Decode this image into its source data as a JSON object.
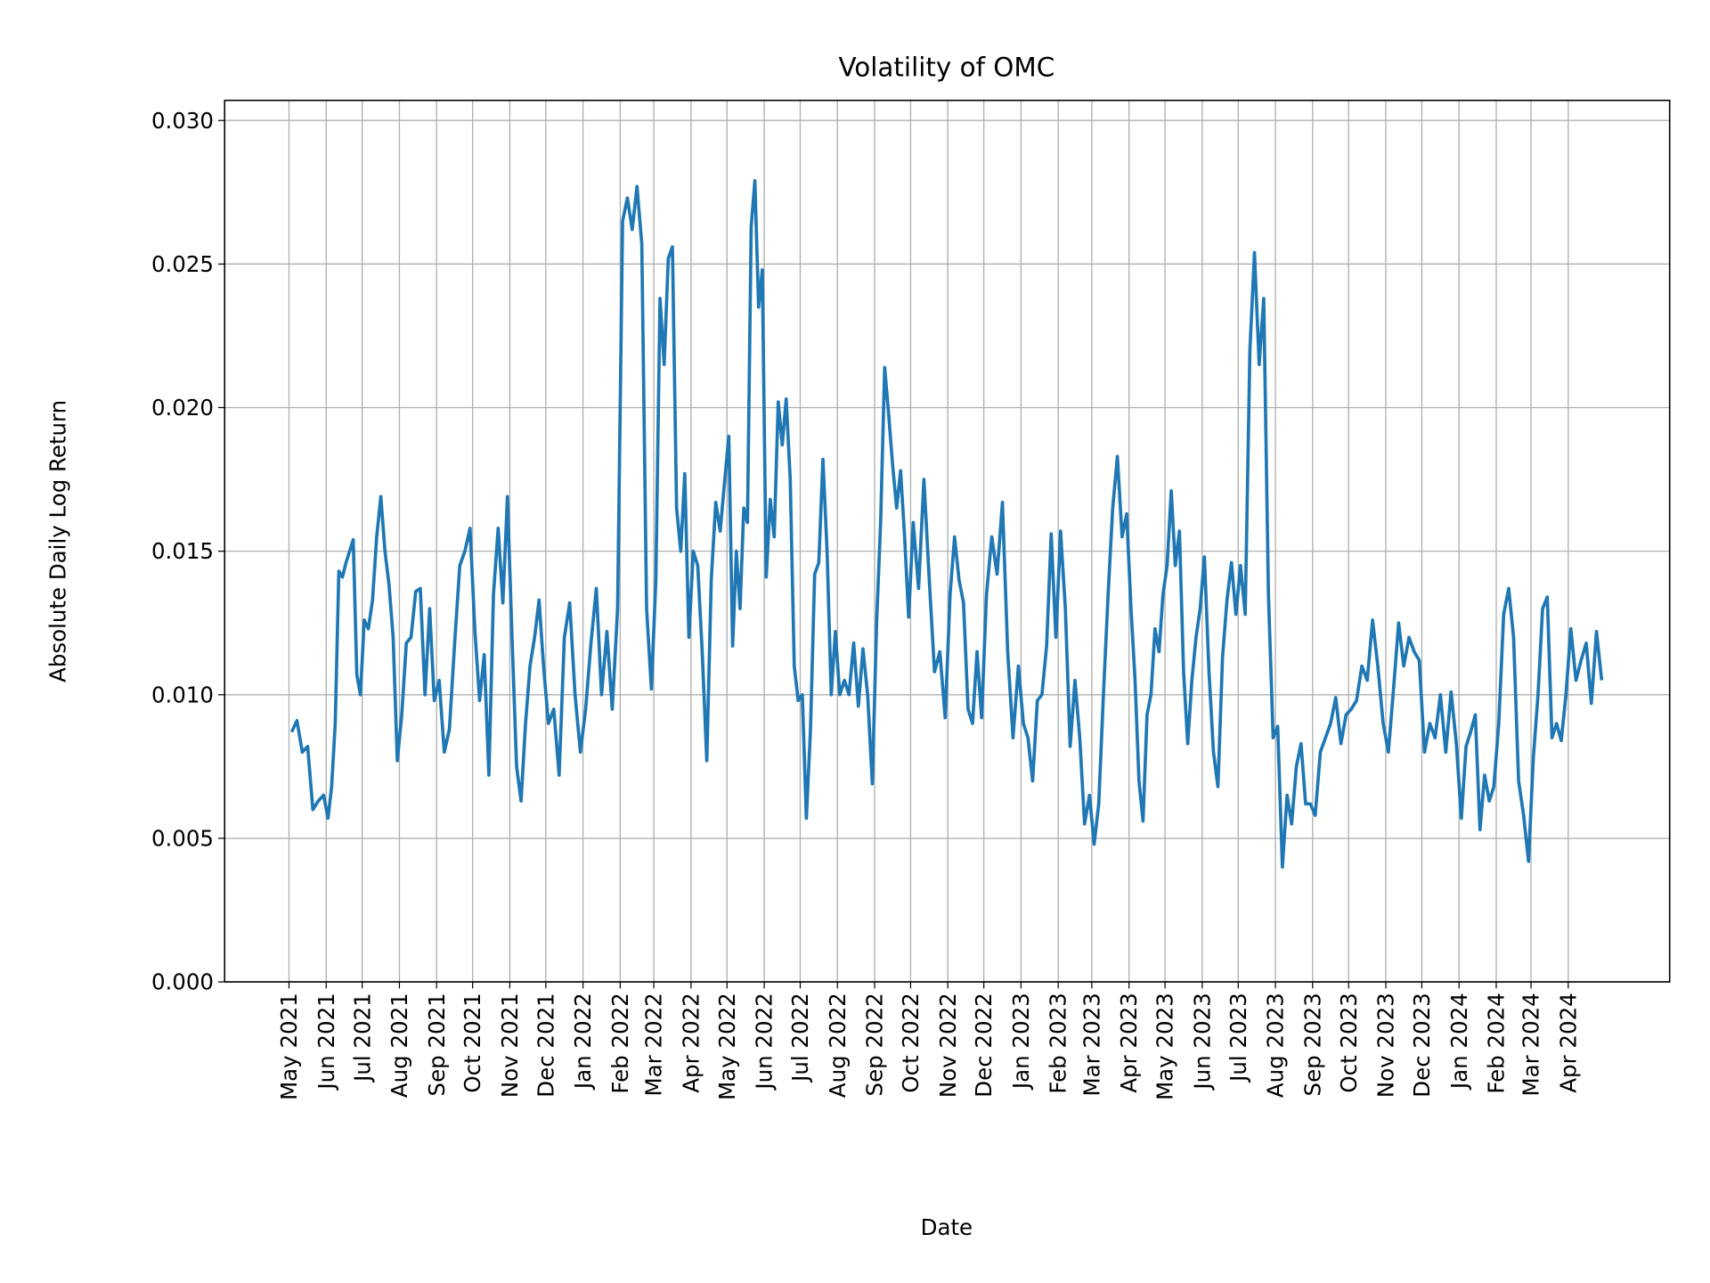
{
  "chart_data": {
    "type": "line",
    "title": "Volatility of OMC",
    "xlabel": "Date",
    "ylabel": "Absolute Daily Log Return",
    "ylim": [
      0,
      0.0307
    ],
    "yticks": [
      "0.000",
      "0.005",
      "0.010",
      "0.015",
      "0.020",
      "0.025",
      "0.030"
    ],
    "xticks": [
      "May 2021",
      "Jun 2021",
      "Jul 2021",
      "Aug 2021",
      "Sep 2021",
      "Oct 2021",
      "Nov 2021",
      "Dec 2021",
      "Jan 2022",
      "Feb 2022",
      "Mar 2022",
      "Apr 2022",
      "May 2022",
      "Jun 2022",
      "Jul 2022",
      "Aug 2022",
      "Sep 2022",
      "Oct 2022",
      "Nov 2022",
      "Dec 2022",
      "Jan 2023",
      "Feb 2023",
      "Mar 2023",
      "Apr 2023",
      "May 2023",
      "Jun 2023",
      "Jul 2023",
      "Aug 2023",
      "Sep 2023",
      "Oct 2023",
      "Nov 2023",
      "Dec 2023",
      "Jan 2024",
      "Feb 2024",
      "Mar 2024",
      "Apr 2024"
    ],
    "grid": true,
    "line_color": "#1f77b4",
    "series": [
      {
        "by_month": [
          {
            "month": "2021-05",
            "values": [
              0.0087,
              0.0091,
              0.008,
              0.0082,
              0.006,
              0.0063,
              0.0065
            ]
          },
          {
            "month": "2021-06",
            "values": [
              0.0057,
              0.0068,
              0.009,
              0.0143,
              0.0141,
              0.0146,
              0.015,
              0.0154,
              0.0107,
              0.01
            ]
          },
          {
            "month": "2021-07",
            "values": [
              0.0126,
              0.0123,
              0.0133,
              0.0155,
              0.0169,
              0.015,
              0.0138,
              0.012,
              0.0077
            ]
          },
          {
            "month": "2021-08",
            "values": [
              0.0093,
              0.0118,
              0.012,
              0.0136,
              0.0137,
              0.01,
              0.013,
              0.0098
            ]
          },
          {
            "month": "2021-09",
            "values": [
              0.0105,
              0.008,
              0.0088,
              0.0118,
              0.0145,
              0.015,
              0.0158
            ]
          },
          {
            "month": "2021-10",
            "values": [
              0.0122,
              0.0098,
              0.0114,
              0.0072,
              0.0135,
              0.0158,
              0.0132,
              0.0169
            ]
          },
          {
            "month": "2021-11",
            "values": [
              0.012,
              0.0075,
              0.0063,
              0.009,
              0.011,
              0.012,
              0.0133,
              0.011
            ]
          },
          {
            "month": "2021-12",
            "values": [
              0.009,
              0.0095,
              0.0072,
              0.012,
              0.0132,
              0.01,
              0.008
            ]
          },
          {
            "month": "2022-01",
            "values": [
              0.0095,
              0.0118,
              0.0137,
              0.01,
              0.0122,
              0.0095,
              0.013
            ]
          },
          {
            "month": "2022-02",
            "values": [
              0.0265,
              0.0273,
              0.0262,
              0.0277,
              0.0257,
              0.013,
              0.0102
            ]
          },
          {
            "month": "2022-03",
            "values": [
              0.014,
              0.0238,
              0.0215,
              0.0252,
              0.0256,
              0.0165,
              0.015,
              0.0177,
              0.012
            ]
          },
          {
            "month": "2022-04",
            "values": [
              0.015,
              0.0145,
              0.0115,
              0.0077,
              0.014,
              0.0167,
              0.0157,
              0.0175
            ]
          },
          {
            "month": "2022-05",
            "values": [
              0.019,
              0.0117,
              0.015,
              0.013,
              0.0165,
              0.016,
              0.0263,
              0.0279,
              0.0235,
              0.0248
            ]
          },
          {
            "month": "2022-06",
            "values": [
              0.0141,
              0.0168,
              0.0155,
              0.0202,
              0.0187,
              0.0203,
              0.0175,
              0.011,
              0.0098
            ]
          },
          {
            "month": "2022-07",
            "values": [
              0.01,
              0.0057,
              0.0088,
              0.0142,
              0.0146,
              0.0182,
              0.015,
              0.01,
              0.0122
            ]
          },
          {
            "month": "2022-08",
            "values": [
              0.01,
              0.0105,
              0.01,
              0.0118,
              0.0096,
              0.0116,
              0.01,
              0.0069
            ]
          },
          {
            "month": "2022-09",
            "values": [
              0.0125,
              0.016,
              0.0214,
              0.0198,
              0.018,
              0.0165,
              0.0178,
              0.0155,
              0.0127
            ]
          },
          {
            "month": "2022-10",
            "values": [
              0.016,
              0.0137,
              0.0175,
              0.014,
              0.0108,
              0.0115,
              0.0092
            ]
          },
          {
            "month": "2022-11",
            "values": [
              0.0135,
              0.0155,
              0.014,
              0.0132,
              0.0095,
              0.009,
              0.0115,
              0.0092
            ]
          },
          {
            "month": "2022-12",
            "values": [
              0.0135,
              0.0155,
              0.0142,
              0.0167,
              0.0115,
              0.0085,
              0.011
            ]
          },
          {
            "month": "2023-01",
            "values": [
              0.009,
              0.0085,
              0.007,
              0.0098,
              0.01,
              0.0117,
              0.0156,
              0.012
            ]
          },
          {
            "month": "2023-02",
            "values": [
              0.0157,
              0.013,
              0.0082,
              0.0105,
              0.0085,
              0.0055,
              0.0065
            ]
          },
          {
            "month": "2023-03",
            "values": [
              0.0048,
              0.0062,
              0.01,
              0.0135,
              0.0165,
              0.0183,
              0.0155,
              0.0163
            ]
          },
          {
            "month": "2023-04",
            "values": [
              0.013,
              0.0105,
              0.007,
              0.0056,
              0.0093,
              0.01,
              0.0123,
              0.0115,
              0.0135
            ]
          },
          {
            "month": "2023-05",
            "values": [
              0.0145,
              0.0171,
              0.0145,
              0.0157,
              0.0108,
              0.0083,
              0.0105,
              0.012,
              0.013
            ]
          },
          {
            "month": "2023-06",
            "values": [
              0.0148,
              0.0108,
              0.008,
              0.0068,
              0.0113,
              0.0133,
              0.0146,
              0.0128
            ]
          },
          {
            "month": "2023-07",
            "values": [
              0.0145,
              0.0128,
              0.022,
              0.0254,
              0.0215,
              0.0238,
              0.0135,
              0.0085
            ]
          },
          {
            "month": "2023-08",
            "values": [
              0.0089,
              0.004,
              0.0065,
              0.0055,
              0.0075,
              0.0083,
              0.0062,
              0.0062
            ]
          },
          {
            "month": "2023-09",
            "values": [
              0.0058,
              0.008,
              0.0085,
              0.009,
              0.0099,
              0.0083,
              0.0093
            ]
          },
          {
            "month": "2023-10",
            "values": [
              0.0095,
              0.0098,
              0.011,
              0.0105,
              0.0126,
              0.011,
              0.009
            ]
          },
          {
            "month": "2023-11",
            "values": [
              0.008,
              0.0102,
              0.0125,
              0.011,
              0.012,
              0.0115,
              0.0112
            ]
          },
          {
            "month": "2023-12",
            "values": [
              0.008,
              0.009,
              0.0085,
              0.01,
              0.008,
              0.0101,
              0.0083
            ]
          },
          {
            "month": "2024-01",
            "values": [
              0.0057,
              0.0082,
              0.0087,
              0.0093,
              0.0053,
              0.0072,
              0.0063,
              0.0068
            ]
          },
          {
            "month": "2024-02",
            "values": [
              0.009,
              0.0128,
              0.0137,
              0.012,
              0.007,
              0.0058,
              0.0042
            ]
          },
          {
            "month": "2024-03",
            "values": [
              0.0078,
              0.01,
              0.013,
              0.0134,
              0.0085,
              0.009,
              0.0084,
              0.01
            ]
          },
          {
            "month": "2024-04",
            "values": [
              0.0123,
              0.0105,
              0.0112,
              0.0118,
              0.0097,
              0.0122,
              0.0105
            ]
          }
        ]
      }
    ]
  }
}
